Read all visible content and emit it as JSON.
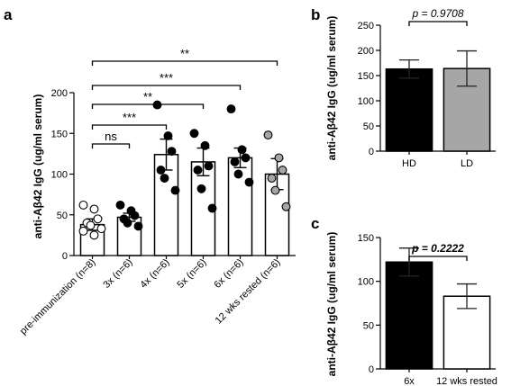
{
  "chart_data": [
    {
      "panel": "a",
      "type": "bar",
      "ylabel": "anti-Aβ42 IgG (ug/ml serum)",
      "ylim": [
        0,
        200
      ],
      "yticks": [
        0,
        50,
        100,
        150,
        200
      ],
      "categories": [
        "pre-immunization (n=8)",
        "3x  (n=6)",
        "4x (n=6)",
        "5x (n=6)",
        "6x  (n=6)",
        "12 wks rested (n=6)"
      ],
      "values": [
        38,
        47,
        124,
        115,
        120,
        100
      ],
      "sem": [
        7,
        5,
        19,
        17,
        12,
        19
      ],
      "points": [
        [
          62,
          57,
          45,
          40,
          37,
          33,
          30,
          25
        ],
        [
          62,
          55,
          49,
          45,
          40,
          36
        ],
        [
          185,
          147,
          128,
          105,
          95,
          80
        ],
        [
          150,
          135,
          110,
          105,
          82,
          58
        ],
        [
          180,
          130,
          120,
          115,
          100,
          90
        ],
        [
          148,
          120,
          105,
          95,
          80,
          60
        ]
      ],
      "point_fill": [
        "open",
        "black",
        "black",
        "black",
        "black",
        "grey"
      ],
      "comparisons": [
        {
          "from": 0,
          "to": 1,
          "label": "ns"
        },
        {
          "from": 0,
          "to": 2,
          "label": "***"
        },
        {
          "from": 0,
          "to": 3,
          "label": "**"
        },
        {
          "from": 0,
          "to": 4,
          "label": "***"
        },
        {
          "from": 0,
          "to": 5,
          "label": "**"
        }
      ]
    },
    {
      "panel": "b",
      "type": "bar",
      "ylabel": "anti-Aβ42 IgG (ug/ml serum)",
      "ylim": [
        0,
        250
      ],
      "yticks": [
        0,
        50,
        100,
        150,
        200,
        250
      ],
      "categories": [
        "HD",
        "LD"
      ],
      "values": [
        163,
        164
      ],
      "err": [
        18,
        35
      ],
      "colors": [
        "#000000",
        "#a6a6a6"
      ],
      "annotation": "p = 0.9708"
    },
    {
      "panel": "c",
      "type": "bar",
      "ylabel": "anti-Aβ42 IgG (ug/ml serum)",
      "ylim": [
        0,
        150
      ],
      "yticks": [
        0,
        50,
        100,
        150
      ],
      "categories": [
        "6x",
        "12 wks rested"
      ],
      "values": [
        122,
        83
      ],
      "err": [
        16,
        14
      ],
      "colors": [
        "#000000",
        "#ffffff"
      ],
      "annotation": "p = 0.2222"
    }
  ]
}
